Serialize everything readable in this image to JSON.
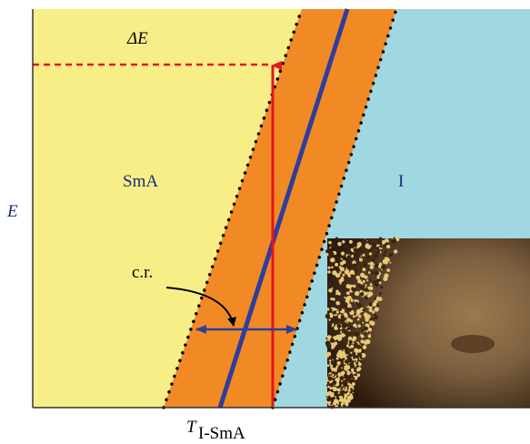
{
  "labels": {
    "delta_e": "ΔE",
    "sma": "SmA",
    "iso": "I",
    "e_axis": "E",
    "cr": "c.r.",
    "t": "T",
    "t_sub": "I-SmA"
  }
}
